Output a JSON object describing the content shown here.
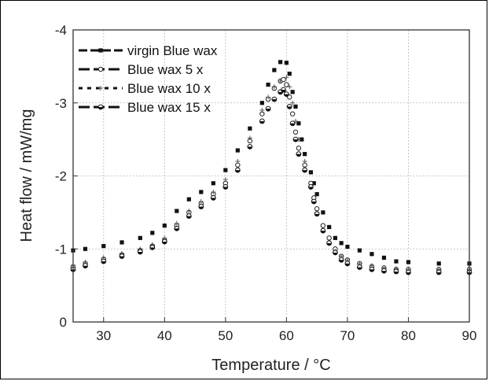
{
  "chart_data": {
    "type": "scatter",
    "xlabel": "Temperature / °C",
    "ylabel": "Heat  flow / mW/mg",
    "xlim": [
      25,
      90
    ],
    "ylim": [
      0,
      -4
    ],
    "y_inverted": true,
    "grid": true,
    "legend_placement": "top-left",
    "x_ticks": [
      "30",
      "40",
      "50",
      "60",
      "70",
      "80",
      "90"
    ],
    "y_ticks": [
      "-4",
      "-3",
      "-2",
      "-1",
      "0"
    ],
    "series": [
      {
        "name": "virgin Blue wax",
        "marker": "square",
        "x": [
          25,
          27,
          30,
          33,
          36,
          38,
          40,
          42,
          44,
          46,
          48,
          50,
          52,
          54,
          56,
          57,
          58,
          59,
          60,
          60.5,
          61,
          61.5,
          62,
          62.5,
          63,
          64,
          64.5,
          65,
          66,
          67,
          68,
          69,
          70,
          72,
          74,
          76,
          78,
          80,
          85,
          90
        ],
        "y": [
          -0.98,
          -1.0,
          -1.04,
          -1.09,
          -1.15,
          -1.22,
          -1.32,
          -1.52,
          -1.68,
          -1.78,
          -1.9,
          -2.08,
          -2.35,
          -2.65,
          -3.0,
          -3.25,
          -3.45,
          -3.56,
          -3.55,
          -3.4,
          -3.15,
          -2.95,
          -2.72,
          -2.5,
          -2.3,
          -2.05,
          -1.9,
          -1.75,
          -1.5,
          -1.3,
          -1.15,
          -1.08,
          -1.03,
          -0.98,
          -0.93,
          -0.88,
          -0.83,
          -0.82,
          -0.8,
          -0.8
        ]
      },
      {
        "name": "Blue wax 5 x",
        "marker": "circle-open",
        "x": [
          25,
          27,
          30,
          33,
          36,
          38,
          40,
          42,
          44,
          46,
          48,
          50,
          52,
          54,
          56,
          57,
          58,
          59,
          59.5,
          60,
          60.5,
          61,
          61.5,
          62,
          63,
          64,
          64.5,
          65,
          66,
          67,
          68,
          69,
          70,
          72,
          74,
          76,
          78,
          80,
          85,
          90
        ],
        "y": [
          -0.75,
          -0.8,
          -0.86,
          -0.92,
          -0.98,
          -1.04,
          -1.12,
          -1.32,
          -1.5,
          -1.62,
          -1.75,
          -1.9,
          -2.15,
          -2.48,
          -2.85,
          -3.05,
          -3.2,
          -3.3,
          -3.32,
          -3.25,
          -3.08,
          -2.85,
          -2.6,
          -2.38,
          -2.15,
          -1.9,
          -1.7,
          -1.55,
          -1.32,
          -1.15,
          -1.0,
          -0.9,
          -0.85,
          -0.8,
          -0.76,
          -0.74,
          -0.72,
          -0.72,
          -0.72,
          -0.72
        ]
      },
      {
        "name": "Blue wax 10 x",
        "marker": "plus",
        "x": [
          25,
          27,
          30,
          33,
          36,
          38,
          40,
          42,
          44,
          46,
          48,
          50,
          52,
          54,
          56,
          57,
          58,
          59,
          60,
          60.5,
          61,
          61.5,
          62,
          63,
          64,
          65,
          66,
          67,
          68,
          69,
          70,
          72,
          74,
          76,
          78,
          80,
          85,
          90
        ],
        "y": [
          -0.78,
          -0.82,
          -0.88,
          -0.94,
          -1.0,
          -1.06,
          -1.15,
          -1.35,
          -1.52,
          -1.65,
          -1.78,
          -1.95,
          -2.2,
          -2.52,
          -2.9,
          -3.08,
          -3.22,
          -3.3,
          -3.35,
          -3.22,
          -3.0,
          -2.75,
          -2.5,
          -2.2,
          -1.85,
          -1.5,
          -1.25,
          -1.08,
          -0.97,
          -0.9,
          -0.85,
          -0.8,
          -0.77,
          -0.74,
          -0.73,
          -0.72,
          -0.72,
          -0.72
        ]
      },
      {
        "name": "Blue wax 15 x",
        "marker": "circle-half",
        "x": [
          25,
          27,
          30,
          33,
          36,
          38,
          40,
          42,
          44,
          46,
          48,
          50,
          52,
          54,
          56,
          57,
          58,
          59,
          59.5,
          60,
          60.5,
          61,
          61.5,
          62,
          63,
          64,
          64.5,
          65,
          66,
          67,
          68,
          69,
          70,
          72,
          74,
          76,
          78,
          80,
          85,
          90
        ],
        "y": [
          -0.72,
          -0.77,
          -0.83,
          -0.9,
          -0.96,
          -1.02,
          -1.1,
          -1.28,
          -1.45,
          -1.58,
          -1.7,
          -1.85,
          -2.08,
          -2.4,
          -2.75,
          -2.92,
          -3.05,
          -3.15,
          -3.18,
          -3.12,
          -2.95,
          -2.72,
          -2.5,
          -2.3,
          -2.08,
          -1.85,
          -1.65,
          -1.48,
          -1.25,
          -1.08,
          -0.95,
          -0.85,
          -0.8,
          -0.75,
          -0.72,
          -0.7,
          -0.69,
          -0.68,
          -0.68,
          -0.68
        ]
      }
    ]
  }
}
